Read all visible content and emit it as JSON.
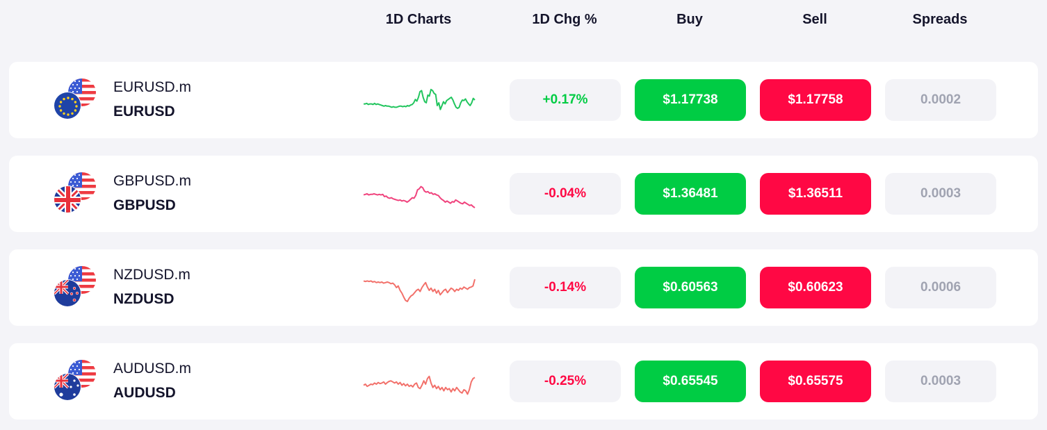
{
  "header": {
    "charts": "1D Charts",
    "change": "1D Chg %",
    "buy": "Buy",
    "sell": "Sell",
    "spreads": "Spreads"
  },
  "colors": {
    "up": "#00cc44",
    "down": "#ff0844",
    "buy_bg": "#00cc44",
    "sell_bg": "#ff0844",
    "chart_green": "#22c55e",
    "chart_pink": "#f0437d",
    "chart_salmon": "#f2706a"
  },
  "rows": [
    {
      "symbol_m": "EURUSD.m",
      "symbol": "EURUSD",
      "base_flag_icon": "eu-flag-icon",
      "change": "+0.17%",
      "direction": "up",
      "buy": "$1.17738",
      "sell": "$1.17758",
      "spread": "0.0002",
      "sparkline_color": "#22c55e",
      "sparkline": [
        52,
        52,
        51,
        53,
        52,
        52,
        53,
        51,
        53,
        52,
        53,
        54,
        55,
        56,
        55,
        56,
        56,
        57,
        58,
        57,
        58,
        58,
        57,
        56,
        56,
        57,
        56,
        57,
        55,
        56,
        54,
        53,
        50,
        44,
        47,
        40,
        30,
        28,
        40,
        48,
        50,
        36,
        38,
        26,
        28,
        33,
        35,
        55,
        50,
        62,
        55,
        48,
        52,
        46,
        44,
        42,
        40,
        45,
        52,
        58,
        60,
        58,
        50,
        45,
        46,
        43,
        48,
        52,
        55,
        50,
        42,
        45
      ]
    },
    {
      "symbol_m": "GBPUSD.m",
      "symbol": "GBPUSD",
      "base_flag_icon": "uk-flag-icon",
      "change": "-0.04%",
      "direction": "down",
      "buy": "$1.36481",
      "sell": "$1.36511",
      "spread": "0.0003",
      "sparkline_color": "#f0437d",
      "sparkline": [
        47,
        46,
        45,
        47,
        46,
        46,
        45,
        46,
        47,
        46,
        47,
        46,
        50,
        49,
        52,
        53,
        52,
        54,
        55,
        56,
        57,
        56,
        58,
        57,
        58,
        60,
        58,
        55,
        52,
        53,
        48,
        38,
        36,
        32,
        34,
        40,
        42,
        41,
        44,
        43,
        46,
        45,
        47,
        48,
        52,
        55,
        57,
        60,
        58,
        60,
        62,
        59,
        60,
        56,
        58,
        60,
        62,
        63,
        60,
        62,
        64,
        66,
        65,
        68,
        70
      ]
    },
    {
      "symbol_m": "NZDUSD.m",
      "symbol": "NZDUSD",
      "base_flag_icon": "nz-flag-icon",
      "change": "-0.14%",
      "direction": "down",
      "buy": "$0.60563",
      "sell": "$0.60623",
      "spread": "0.0006",
      "sparkline_color": "#f2706a",
      "sparkline": [
        33,
        34,
        33,
        34,
        33,
        35,
        34,
        36,
        35,
        36,
        35,
        37,
        36,
        35,
        36,
        38,
        37,
        40,
        45,
        42,
        50,
        55,
        62,
        68,
        70,
        64,
        60,
        58,
        54,
        50,
        48,
        52,
        45,
        40,
        36,
        44,
        50,
        46,
        52,
        48,
        55,
        50,
        58,
        54,
        50,
        48,
        54,
        50,
        46,
        48,
        52,
        48,
        50,
        46,
        48,
        44,
        46,
        48,
        45,
        44,
        42,
        30
      ]
    },
    {
      "symbol_m": "AUDUSD.m",
      "symbol": "AUDUSD",
      "base_flag_icon": "au-flag-icon",
      "change": "-0.25%",
      "direction": "down",
      "buy": "$0.65545",
      "sell": "$0.65575",
      "spread": "0.0003",
      "sparkline_color": "#f2706a",
      "sparkline": [
        52,
        50,
        54,
        52,
        50,
        51,
        48,
        50,
        47,
        49,
        48,
        46,
        50,
        47,
        45,
        44,
        46,
        48,
        46,
        50,
        47,
        52,
        49,
        53,
        50,
        54,
        52,
        55,
        50,
        48,
        56,
        58,
        52,
        44,
        50,
        40,
        36,
        48,
        56,
        52,
        58,
        54,
        60,
        56,
        62,
        56,
        60,
        58,
        64,
        58,
        62,
        56,
        60,
        64,
        66,
        60,
        62,
        68,
        60,
        46,
        40,
        38
      ]
    }
  ]
}
